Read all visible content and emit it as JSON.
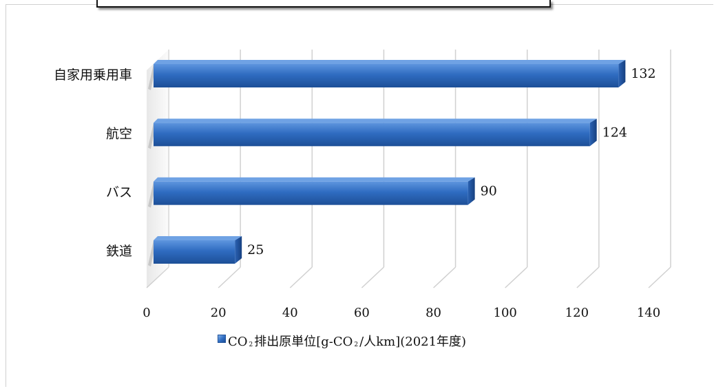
{
  "chart_data": {
    "type": "bar",
    "orientation": "horizontal",
    "categories": [
      "自家用乗用車",
      "航空",
      "バス",
      "鉄道"
    ],
    "series": [
      {
        "name": "CO₂排出原単位[g-CO₂/人km](2021年度)",
        "values": [
          132,
          124,
          90,
          25
        ]
      }
    ],
    "data_labels": [
      "132",
      "124",
      "90",
      "25"
    ],
    "x_ticks": [
      "0",
      "20",
      "40",
      "60",
      "80",
      "100",
      "120",
      "140"
    ],
    "xlim": [
      0,
      140
    ],
    "grid": true,
    "legend_position": "bottom",
    "bar_color": "#2f6cc1"
  },
  "legend": {
    "part1": "CO",
    "sub1": "2",
    "part2": "排出原単位[g-CO",
    "sub2": "2",
    "part3": "/人km](2021年度)"
  }
}
